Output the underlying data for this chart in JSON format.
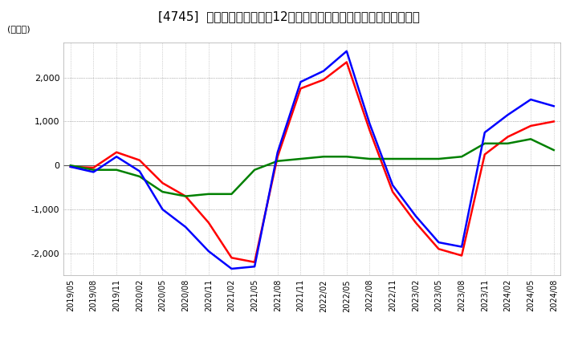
{
  "title": "[4745]  キャッシュフローの12か月移動合計の対前年同期増減額の推移",
  "ylabel": "(百万円)",
  "ylim": [
    -2500,
    2800
  ],
  "yticks": [
    -2000,
    -1000,
    0,
    1000,
    2000
  ],
  "colors": {
    "eigyo": "#ff0000",
    "toshi": "#008000",
    "free": "#0000ff"
  },
  "x_labels": [
    "2019/05",
    "2019/08",
    "2019/11",
    "2020/02",
    "2020/05",
    "2020/08",
    "2020/11",
    "2021/02",
    "2021/05",
    "2021/08",
    "2021/11",
    "2022/02",
    "2022/05",
    "2022/08",
    "2022/11",
    "2023/02",
    "2023/05",
    "2023/08",
    "2023/11",
    "2024/02",
    "2024/05",
    "2024/08"
  ],
  "eigyo_cf": [
    -30,
    -50,
    300,
    120,
    -400,
    -700,
    -1300,
    -2100,
    -2200,
    200,
    1750,
    1950,
    2350,
    800,
    -600,
    -1300,
    -1900,
    -2050,
    250,
    650,
    900,
    1000
  ],
  "toshi_cf": [
    0,
    -100,
    -100,
    -250,
    -600,
    -700,
    -650,
    -650,
    -100,
    100,
    150,
    200,
    200,
    150,
    150,
    150,
    150,
    200,
    500,
    500,
    600,
    350
  ],
  "free_cf": [
    -30,
    -150,
    200,
    -130,
    -1000,
    -1400,
    -1950,
    -2350,
    -2300,
    300,
    1900,
    2150,
    2600,
    950,
    -450,
    -1150,
    -1750,
    -1850,
    750,
    1150,
    1500,
    1350
  ],
  "background_color": "#ffffff",
  "plot_bg_color": "#ffffff",
  "grid_color": "#aaaaaa",
  "title_fontsize": 11,
  "tick_fontsize": 7,
  "legend_fontsize": 9
}
